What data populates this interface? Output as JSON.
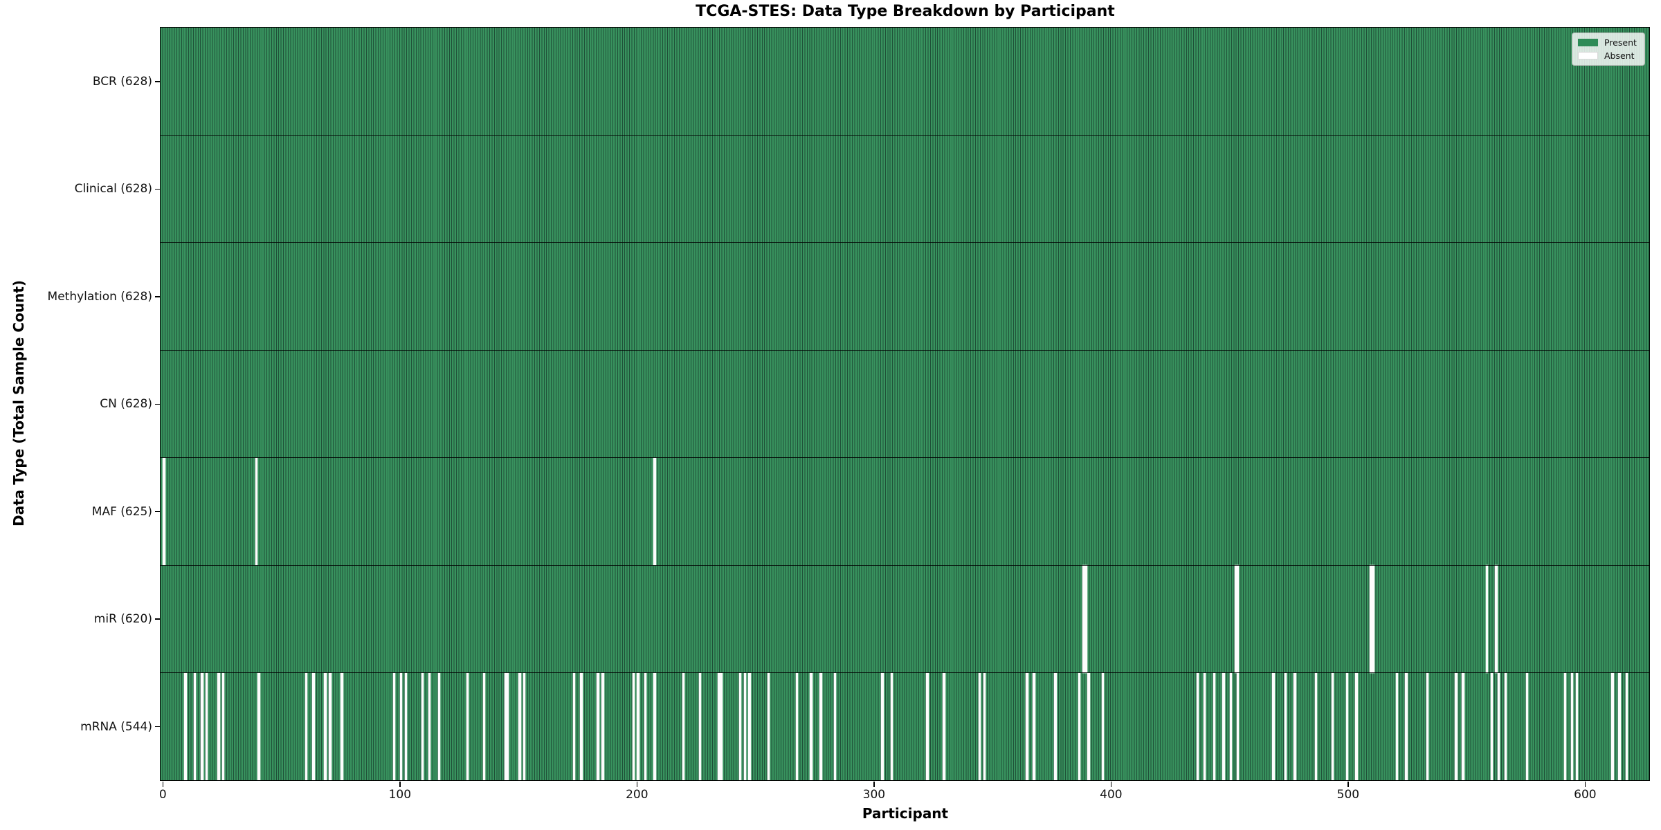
{
  "title": "TCGA-STES: Data Type Breakdown by Participant",
  "chart_data": {
    "type": "heatmap",
    "title": "TCGA-STES: Data Type Breakdown by Participant",
    "xlabel": "Participant",
    "ylabel": "Data Type (Total Sample Count)",
    "n_participants": 628,
    "x_ticks": [
      0,
      100,
      200,
      300,
      400,
      500,
      600
    ],
    "grid": false,
    "legend_position": "upper right",
    "legend": [
      {
        "label": "Present",
        "color": "#2E8B57"
      },
      {
        "label": "Absent",
        "color": "#ffffff"
      }
    ],
    "colors": {
      "present_fill": "#2E8B57",
      "present_stripe_light": "#38925e",
      "present_stripe_dark": "#1f5038",
      "absent_fill": "#fdfdfd",
      "row_separator": "#000000",
      "axis": "#000000"
    },
    "rows": [
      {
        "key": "bcr",
        "label": "BCR (628)",
        "name": "BCR",
        "present_count": 628,
        "absent_participants": []
      },
      {
        "key": "clinical",
        "label": "Clinical (628)",
        "name": "Clinical",
        "present_count": 628,
        "absent_participants": []
      },
      {
        "key": "methylation",
        "label": "Methylation (628)",
        "name": "Methylation",
        "present_count": 628,
        "absent_participants": []
      },
      {
        "key": "cn",
        "label": "CN (628)",
        "name": "CN",
        "present_count": 628,
        "absent_participants": []
      },
      {
        "key": "maf",
        "label": "MAF (625)",
        "name": "MAF",
        "present_count": 625,
        "absent_participants": [
          1,
          40,
          208
        ]
      },
      {
        "key": "mir",
        "label": "miR (620)",
        "name": "miR",
        "present_count": 620,
        "absent_participants": [
          389,
          390,
          453,
          454,
          510,
          511,
          559,
          563
        ]
      },
      {
        "key": "mrna",
        "label": "mRNA (544)",
        "name": "mRNA",
        "present_count": 544,
        "absent_participants": [
          10,
          14,
          17,
          19,
          24,
          26,
          41,
          61,
          64,
          69,
          71,
          76,
          98,
          101,
          103,
          110,
          113,
          117,
          129,
          136,
          145,
          146,
          151,
          153,
          174,
          177,
          184,
          186,
          199,
          201,
          204,
          208,
          220,
          227,
          235,
          236,
          244,
          246,
          248,
          256,
          268,
          274,
          278,
          284,
          304,
          308,
          323,
          330,
          345,
          347,
          365,
          368,
          377,
          387,
          391,
          397,
          437,
          440,
          444,
          448,
          451,
          454,
          469,
          474,
          478,
          487,
          494,
          500,
          504,
          521,
          525,
          534,
          546,
          549,
          561,
          564,
          567,
          576,
          592,
          595,
          597,
          612,
          615,
          618
        ]
      }
    ]
  }
}
